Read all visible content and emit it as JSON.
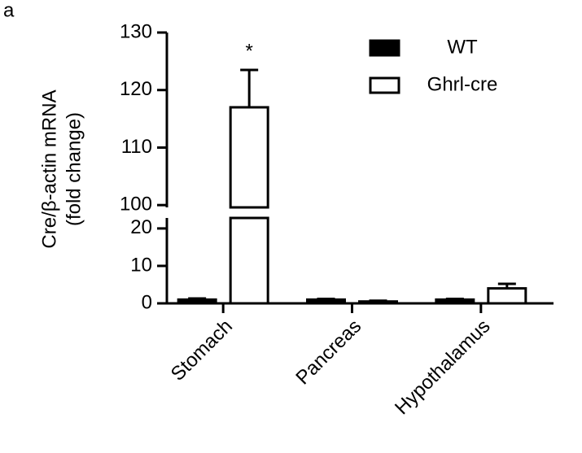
{
  "chart_data": {
    "type": "bar",
    "panel_label": "a",
    "y_label": [
      "Cre/β-actin mRNA",
      "(fold change)"
    ],
    "annotation": "*",
    "categories": [
      "Stomach",
      "Pancreas",
      "Hypothalamus"
    ],
    "series": [
      {
        "name": "WT",
        "color": "#000000",
        "values": [
          1,
          1,
          1
        ],
        "errors": [
          0.3,
          0.2,
          0.2
        ]
      },
      {
        "name": "Ghrl-cre",
        "color": "#ffffff",
        "values": [
          117,
          0.5,
          4
        ],
        "errors": [
          6.5,
          0.2,
          1.2
        ]
      }
    ],
    "y_segments": [
      {
        "ylim": [
          0,
          22.8
        ],
        "yticks": [
          0,
          10,
          20
        ]
      },
      {
        "ylim": [
          99.6,
          130
        ],
        "yticks": [
          100,
          110,
          120,
          130
        ]
      }
    ]
  }
}
